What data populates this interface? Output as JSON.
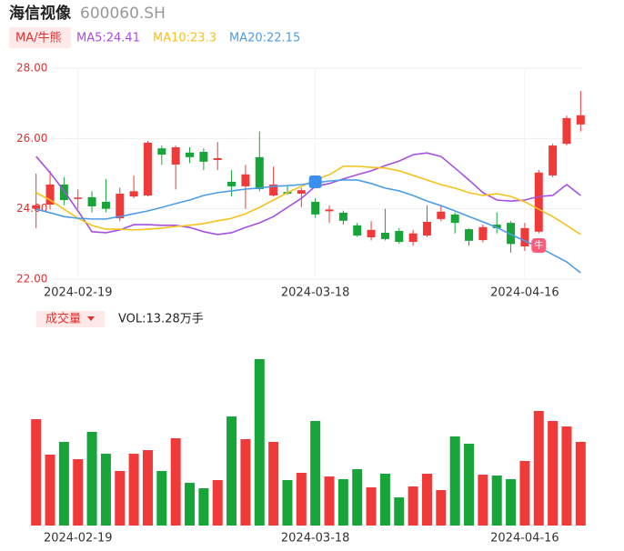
{
  "chart_data": {
    "type": "candlestick",
    "title": "海信视像",
    "subtitle": "600060.SH",
    "indicator": "MA/牛熊",
    "categories": [
      null,
      null,
      null,
      "2024-02-19",
      null,
      null,
      null,
      null,
      null,
      null,
      null,
      null,
      null,
      null,
      null,
      null,
      null,
      null,
      null,
      null,
      "2024-03-18",
      null,
      null,
      null,
      null,
      null,
      null,
      null,
      null,
      null,
      null,
      null,
      null,
      null,
      null,
      "2024-04-16",
      null,
      null,
      null,
      null
    ],
    "open": [
      24.0,
      24.12,
      24.69,
      24.28,
      24.33,
      24.2,
      23.73,
      24.35,
      24.38,
      25.72,
      25.26,
      25.6,
      25.62,
      25.39,
      24.77,
      24.64,
      25.47,
      24.38,
      24.48,
      24.43,
      24.2,
      23.93,
      23.89,
      23.53,
      23.19,
      23.32,
      23.37,
      23.06,
      23.24,
      23.71,
      23.84,
      23.42,
      23.11,
      23.55,
      23.6,
      22.93,
      23.35,
      24.95,
      25.85,
      26.4
    ],
    "high": [
      25.0,
      25.08,
      24.9,
      24.55,
      24.5,
      24.85,
      24.6,
      24.95,
      25.93,
      25.8,
      25.8,
      25.75,
      25.72,
      25.9,
      25.1,
      25.25,
      26.2,
      25.2,
      24.65,
      24.6,
      24.3,
      24.1,
      23.95,
      23.6,
      23.65,
      24.0,
      23.45,
      23.4,
      24.1,
      24.1,
      23.9,
      23.45,
      23.55,
      23.9,
      23.65,
      23.6,
      25.1,
      25.85,
      26.65,
      27.35
    ],
    "low": [
      23.45,
      23.98,
      24.1,
      24.0,
      23.9,
      23.9,
      23.65,
      24.3,
      24.35,
      25.25,
      24.55,
      25.3,
      25.1,
      25.1,
      24.35,
      24.0,
      24.5,
      24.35,
      24.4,
      24.05,
      23.75,
      23.6,
      23.55,
      23.2,
      23.1,
      23.1,
      23.0,
      22.95,
      23.2,
      23.65,
      23.3,
      22.95,
      23.05,
      23.3,
      22.75,
      22.8,
      23.3,
      24.9,
      25.8,
      26.2
    ],
    "close": [
      24.1,
      24.69,
      24.25,
      24.32,
      24.07,
      24.0,
      24.43,
      24.5,
      25.88,
      25.54,
      25.75,
      25.47,
      25.34,
      25.44,
      24.64,
      24.98,
      24.56,
      24.69,
      24.43,
      24.53,
      23.84,
      23.98,
      23.66,
      23.24,
      23.4,
      23.14,
      23.06,
      23.3,
      23.63,
      23.92,
      23.6,
      23.09,
      23.48,
      23.45,
      23.0,
      23.45,
      25.03,
      25.8,
      26.58,
      26.66
    ],
    "up_color": "#f03a3a",
    "down_color": "#17a53a",
    "series": [
      {
        "name": "MA5:24.41",
        "color": "#a64fe0",
        "values": [
          25.49,
          25.03,
          24.51,
          23.94,
          23.35,
          23.32,
          23.4,
          23.55,
          23.55,
          23.53,
          23.53,
          23.47,
          23.35,
          23.27,
          23.32,
          23.47,
          23.6,
          23.78,
          24.04,
          24.3,
          24.64,
          24.72,
          24.85,
          24.97,
          25.08,
          25.23,
          25.36,
          25.54,
          25.59,
          25.49,
          25.16,
          24.82,
          24.46,
          24.25,
          24.22,
          24.25,
          24.35,
          24.38,
          24.69,
          24.38
        ]
      },
      {
        "name": "MA10:23.3",
        "color": "#f5c21b",
        "values": [
          24.46,
          24.25,
          23.99,
          23.73,
          23.53,
          23.42,
          23.42,
          23.4,
          23.42,
          23.45,
          23.5,
          23.53,
          23.58,
          23.66,
          23.73,
          23.86,
          24.04,
          24.25,
          24.46,
          24.64,
          24.82,
          24.97,
          25.21,
          25.21,
          25.18,
          25.16,
          25.08,
          24.95,
          24.82,
          24.69,
          24.59,
          24.46,
          24.38,
          24.43,
          24.35,
          24.2,
          23.99,
          23.78,
          23.53,
          23.27
        ]
      },
      {
        "name": "MA20:22.15",
        "color": "#4d9de6",
        "values": [
          23.99,
          23.89,
          23.78,
          23.73,
          23.71,
          23.71,
          23.78,
          23.86,
          23.94,
          24.04,
          24.15,
          24.25,
          24.38,
          24.46,
          24.51,
          24.56,
          24.59,
          24.64,
          24.66,
          24.69,
          24.74,
          24.79,
          24.82,
          24.82,
          24.72,
          24.59,
          24.51,
          24.38,
          24.22,
          24.09,
          23.94,
          23.78,
          23.63,
          23.47,
          23.27,
          23.09,
          22.91,
          22.7,
          22.49,
          22.18
        ]
      }
    ],
    "ylim": [
      22,
      28
    ],
    "yticks": [
      {
        "value": 22,
        "label": "22.00"
      },
      {
        "value": 24,
        "label": "24.00"
      },
      {
        "value": 26,
        "label": "26.00"
      },
      {
        "value": 28,
        "label": "28.00"
      }
    ],
    "grid": true,
    "annotation": "牛",
    "volume_title": "成交量",
    "volume_label": "VOL:13.28万手",
    "volume": [
      16.89,
      11.26,
      13.28,
      10.54,
      14.87,
      11.4,
      8.66,
      11.4,
      11.98,
      8.66,
      13.86,
      6.78,
      5.92,
      7.22,
      17.32,
      13.71,
      26.42,
      13.28,
      7.22,
      8.37,
      16.6,
      7.79,
      7.36,
      8.95,
      6.06,
      8.23,
      4.47,
      6.21,
      8.23,
      5.63,
      14.15,
      12.99,
      8.08,
      7.94,
      7.36,
      10.25,
      18.19,
      16.6,
      15.73,
      13.28
    ]
  }
}
